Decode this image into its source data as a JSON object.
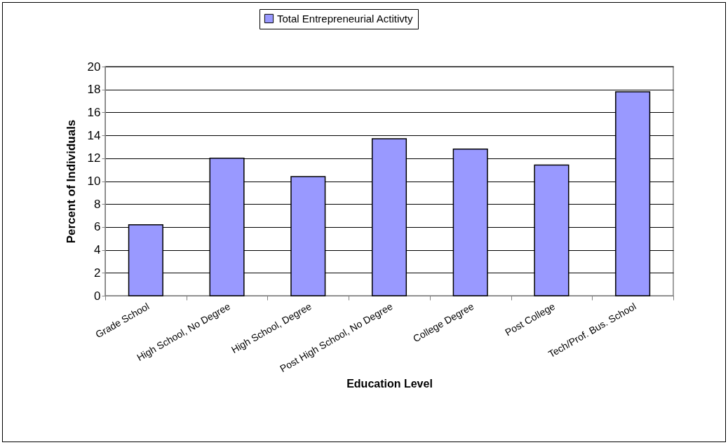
{
  "chart_data": {
    "type": "bar",
    "xlabel": "Education Level",
    "ylabel": "Percent of Individuals",
    "categories": [
      "Grade School",
      "High School, No Degree",
      "High School, Degree",
      "Post High School, No Degree",
      "College Degree",
      "Post College",
      "Tech/Prof. Bus. School"
    ],
    "series": [
      {
        "name": "Total Entrepreneurial Actitivty",
        "color": "#9999ff",
        "values": [
          6.2,
          12.0,
          10.4,
          13.7,
          12.8,
          11.4,
          17.8
        ]
      }
    ],
    "ylim": [
      0,
      20
    ],
    "yticks": [
      0,
      2,
      4,
      6,
      8,
      10,
      12,
      14,
      16,
      18,
      20
    ],
    "grid": "y",
    "legend": "top"
  }
}
